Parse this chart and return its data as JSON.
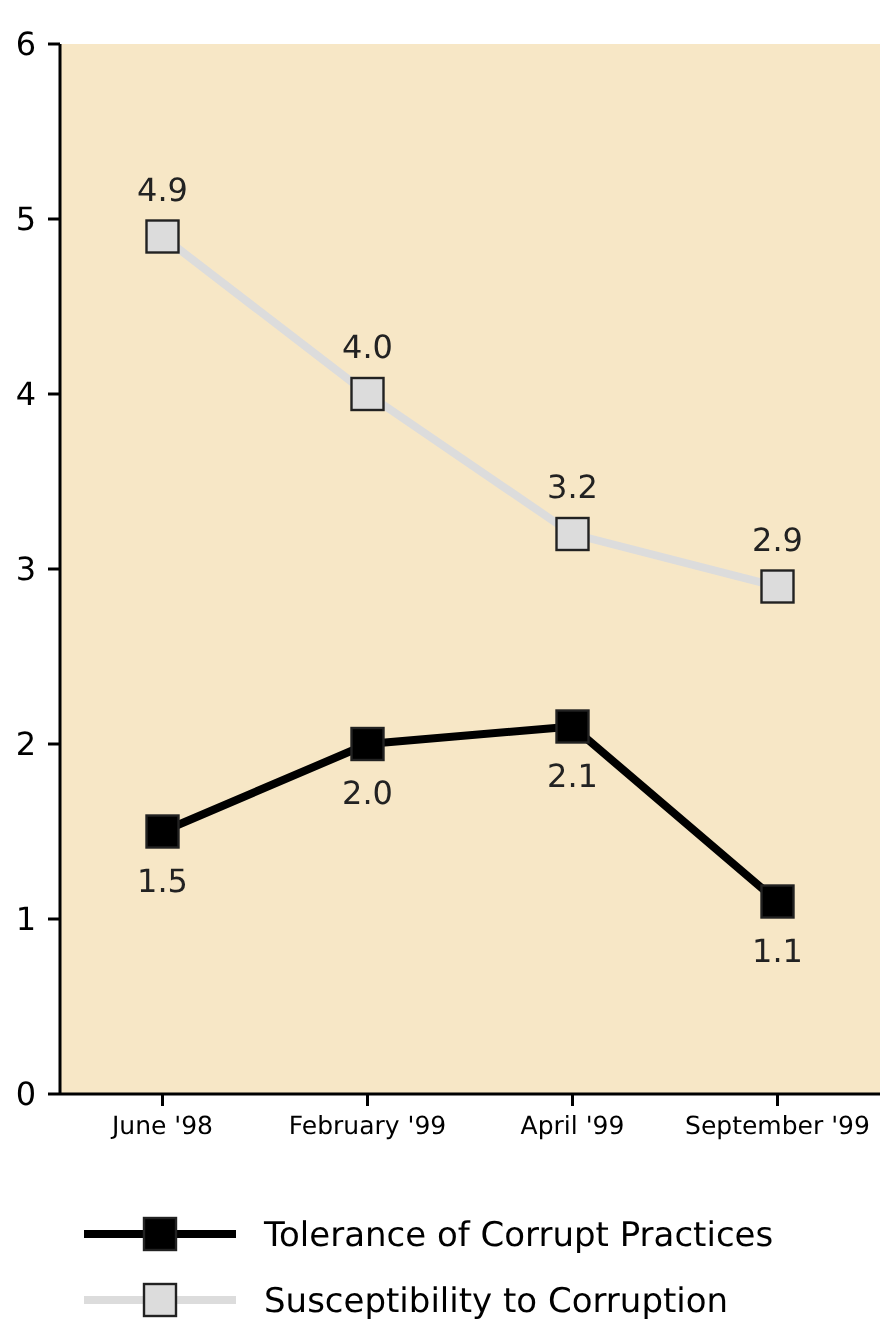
{
  "chart_data": {
    "type": "line",
    "categories": [
      "June '98",
      "February '99",
      "April '99",
      "September '99"
    ],
    "series": [
      {
        "name": "Tolerance of Corrupt Practices",
        "color": "#000000",
        "values": [
          1.5,
          2.0,
          2.1,
          1.1
        ],
        "value_labels": [
          "1.5",
          "2.0",
          "2.1",
          "1.1"
        ]
      },
      {
        "name": "Susceptibility to Corruption",
        "color": "#dcdcdc",
        "values": [
          4.9,
          4.0,
          3.2,
          2.9
        ],
        "value_labels": [
          "4.9",
          "4.0",
          "3.2",
          "2.9"
        ]
      }
    ],
    "ylim": [
      0,
      6
    ],
    "yticks": [
      0,
      1,
      2,
      3,
      4,
      5,
      6
    ],
    "grid": false,
    "legend": "bottom",
    "marker": "square",
    "line_style": "solid"
  }
}
